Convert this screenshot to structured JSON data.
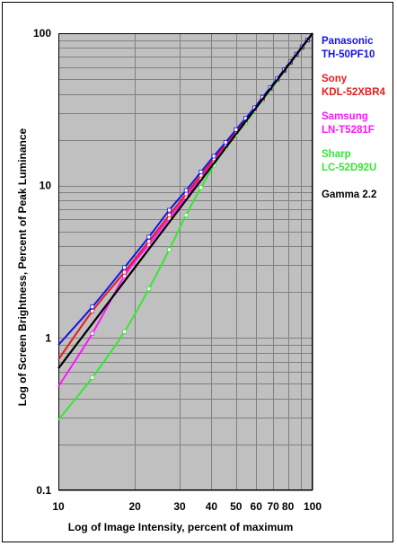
{
  "chart_data": {
    "type": "line",
    "xlabel": "Log of Image Intensity, percent of maximum",
    "ylabel": "Log of Screen Brightness, Percent of Peak Luminance",
    "xscale": "log",
    "yscale": "log",
    "xlim": [
      10,
      100
    ],
    "ylim": [
      0.1,
      100
    ],
    "grid": true,
    "legend": "right",
    "x_tick_labels": [
      "10",
      "20",
      "30",
      "40",
      "50",
      "60",
      "70",
      "80",
      "100"
    ],
    "y_tick_labels": [
      "0.1",
      "1",
      "10",
      "100"
    ],
    "series": [
      {
        "name_lines": [
          "Panasonic",
          "TH-50PF10"
        ],
        "color": "#1414e6",
        "points": [
          [
            10,
            0.9
          ],
          [
            13.6,
            1.6
          ],
          [
            18.2,
            2.9
          ],
          [
            22.7,
            4.6
          ],
          [
            27.3,
            6.9
          ],
          [
            31.8,
            9.3
          ],
          [
            36.4,
            12.3
          ],
          [
            40.9,
            15.6
          ],
          [
            45.5,
            19.2
          ],
          [
            50,
            23.3
          ],
          [
            54.5,
            27.6
          ],
          [
            59.1,
            32.4
          ],
          [
            63.6,
            38
          ],
          [
            68.2,
            44
          ],
          [
            72.7,
            50.5
          ],
          [
            77.3,
            57.5
          ],
          [
            81.8,
            65
          ],
          [
            86.4,
            73
          ],
          [
            90.9,
            81.5
          ],
          [
            95.5,
            90.5
          ],
          [
            100,
            100
          ]
        ]
      },
      {
        "name_lines": [
          "Sony",
          "KDL-52XBR4"
        ],
        "color": "#e61c1c",
        "points": [
          [
            10,
            0.72
          ],
          [
            13.6,
            1.5
          ],
          [
            18.2,
            2.7
          ],
          [
            22.7,
            4.3
          ],
          [
            27.3,
            6.4
          ],
          [
            31.8,
            8.8
          ],
          [
            36.4,
            11.7
          ],
          [
            40.9,
            15
          ],
          [
            45.5,
            18.7
          ],
          [
            50,
            22.8
          ],
          [
            54.5,
            27.2
          ],
          [
            59.1,
            32
          ],
          [
            63.6,
            37.5
          ],
          [
            68.2,
            43.5
          ],
          [
            72.7,
            50
          ],
          [
            77.3,
            57
          ],
          [
            81.8,
            64.5
          ],
          [
            86.4,
            72.5
          ],
          [
            90.9,
            81
          ],
          [
            95.5,
            90.2
          ],
          [
            100,
            100
          ]
        ]
      },
      {
        "name_lines": [
          "Samsung",
          "LN-T5281F"
        ],
        "color": "#ff14ff",
        "points": [
          [
            10,
            0.48
          ],
          [
            13.6,
            1.07
          ],
          [
            18.2,
            2.55
          ],
          [
            22.7,
            4.1
          ],
          [
            27.3,
            6.1
          ],
          [
            31.8,
            8.4
          ],
          [
            36.4,
            11.2
          ],
          [
            40.9,
            14.5
          ],
          [
            45.5,
            18.2
          ],
          [
            50,
            22.3
          ],
          [
            54.5,
            26.8
          ],
          [
            59.1,
            31.7
          ],
          [
            63.6,
            37.2
          ],
          [
            68.2,
            43.3
          ],
          [
            72.7,
            49.8
          ],
          [
            77.3,
            56.8
          ],
          [
            81.8,
            64.3
          ],
          [
            86.4,
            72.3
          ],
          [
            90.9,
            80.8
          ],
          [
            95.5,
            90
          ],
          [
            100,
            100
          ]
        ]
      },
      {
        "name_lines": [
          "Sharp",
          "LC-52D92U"
        ],
        "color": "#36e636",
        "points": [
          [
            10,
            0.29
          ],
          [
            13.6,
            0.55
          ],
          [
            18.2,
            1.1
          ],
          [
            22.7,
            2.1
          ],
          [
            27.3,
            3.8
          ],
          [
            31.8,
            6.4
          ],
          [
            36.4,
            9.7
          ],
          [
            40.9,
            13.6
          ],
          [
            45.5,
            17.6
          ],
          [
            50,
            21.5
          ],
          [
            54.5,
            26
          ],
          [
            59.1,
            31
          ],
          [
            63.6,
            36.5
          ],
          [
            68.2,
            42.5
          ],
          [
            72.7,
            49
          ],
          [
            77.3,
            56
          ],
          [
            81.8,
            63.5
          ],
          [
            86.4,
            71.5
          ],
          [
            90.9,
            80.2
          ],
          [
            95.5,
            89.8
          ],
          [
            100,
            100
          ]
        ]
      },
      {
        "name_lines": [
          "Gamma 2.2"
        ],
        "color": "#000000",
        "gamma": 2.2
      }
    ]
  }
}
